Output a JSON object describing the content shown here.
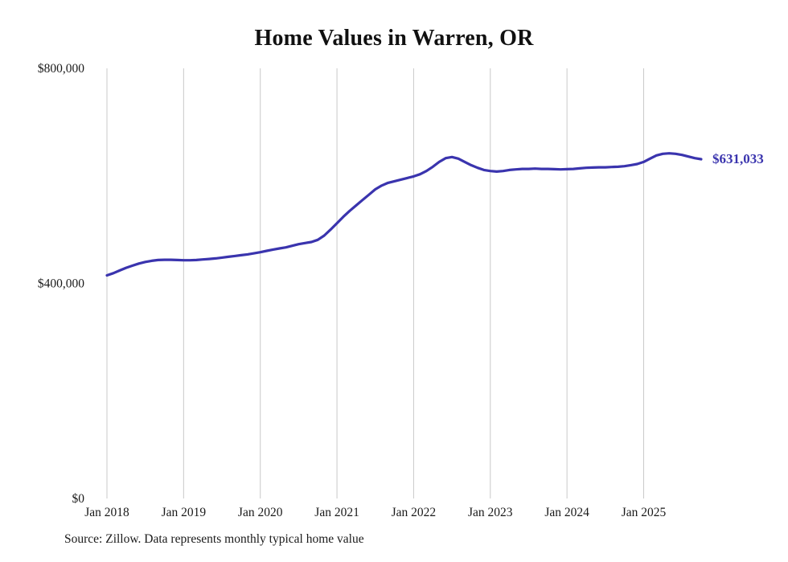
{
  "chart_data": {
    "type": "line",
    "title": "Home Values in Warren, OR",
    "source": "Source: Zillow. Data represents monthly typical home value",
    "end_label": "$631,033",
    "line_color": "#3a34ae",
    "grid_color": "#c9c9c9",
    "tick_text_color": "#1a1a1a",
    "ylim": [
      0,
      800000
    ],
    "legend": "none",
    "grid": "vertical-only",
    "y_ticks": [
      {
        "label": "$0",
        "value": 0
      },
      {
        "label": "$400,000",
        "value": 400000
      },
      {
        "label": "$800,000",
        "value": 800000
      }
    ],
    "x_tick_labels": [
      "Jan 2018",
      "Jan 2019",
      "Jan 2020",
      "Jan 2021",
      "Jan 2022",
      "Jan 2023",
      "Jan 2024",
      "Jan 2025"
    ],
    "x_start": "Jan 2018",
    "x_end": "Oct 2025",
    "frequency": "monthly",
    "series": [
      {
        "name": "Typical home value",
        "values": [
          415000,
          419000,
          424000,
          429000,
          433000,
          437000,
          440000,
          442000,
          443500,
          444000,
          444000,
          443500,
          443000,
          443000,
          443500,
          444500,
          445500,
          446500,
          448000,
          449500,
          451000,
          452500,
          454000,
          456000,
          458000,
          460500,
          463000,
          465000,
          467000,
          470000,
          473000,
          475000,
          477000,
          481000,
          489000,
          500000,
          512000,
          524000,
          535000,
          545000,
          555000,
          565000,
          575000,
          582000,
          587000,
          590000,
          593000,
          596000,
          599000,
          603000,
          609000,
          617000,
          626000,
          633000,
          635000,
          632000,
          626000,
          620000,
          615000,
          611000,
          609000,
          608000,
          609000,
          611000,
          612000,
          613000,
          613000,
          613500,
          613000,
          613000,
          612500,
          612000,
          612500,
          613000,
          614000,
          615000,
          615500,
          616000,
          616000,
          616500,
          617000,
          618000,
          620000,
          622000,
          626000,
          632000,
          638000,
          641000,
          642000,
          641000,
          639000,
          636000,
          633000,
          631033
        ]
      }
    ]
  }
}
